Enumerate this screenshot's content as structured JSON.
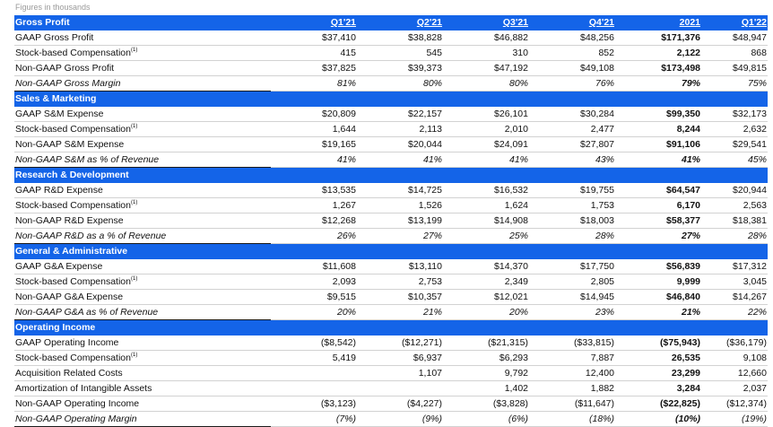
{
  "note": "Figures in thousands",
  "columns": [
    "Q1'21",
    "Q2'21",
    "Q3'21",
    "Q4'21",
    "2021",
    "Q1'22"
  ],
  "sup": "(1)",
  "sections": [
    {
      "title": "Gross Profit",
      "rows": [
        {
          "label": "GAAP Gross Profit",
          "values": [
            "$37,410",
            "$38,828",
            "$46,882",
            "$48,256",
            "$171,376",
            "$48,947"
          ]
        },
        {
          "label": "Stock-based Compensation",
          "values": [
            "415",
            "545",
            "310",
            "852",
            "2,122",
            "868"
          ]
        },
        {
          "label": "Non-GAAP Gross Profit",
          "values": [
            "$37,825",
            "$39,373",
            "$47,192",
            "$49,108",
            "$173,498",
            "$49,815"
          ]
        },
        {
          "label": "Non-GAAP Gross Margin",
          "values": [
            "81%",
            "80%",
            "80%",
            "76%",
            "79%",
            "75%"
          ]
        }
      ]
    },
    {
      "title": "Sales & Marketing",
      "rows": [
        {
          "label": "GAAP S&M Expense",
          "values": [
            "$20,809",
            "$22,157",
            "$26,101",
            "$30,284",
            "$99,350",
            "$32,173"
          ]
        },
        {
          "label": "Stock-based Compensation",
          "values": [
            "1,644",
            "2,113",
            "2,010",
            "2,477",
            "8,244",
            "2,632"
          ]
        },
        {
          "label": "Non-GAAP S&M Expense",
          "values": [
            "$19,165",
            "$20,044",
            "$24,091",
            "$27,807",
            "$91,106",
            "$29,541"
          ]
        },
        {
          "label": "Non-GAAP S&M as % of Revenue",
          "values": [
            "41%",
            "41%",
            "41%",
            "43%",
            "41%",
            "45%"
          ]
        }
      ]
    },
    {
      "title": "Research & Development",
      "rows": [
        {
          "label": "GAAP R&D Expense",
          "values": [
            "$13,535",
            "$14,725",
            "$16,532",
            "$19,755",
            "$64,547",
            "$20,944"
          ]
        },
        {
          "label": "Stock-based Compensation",
          "values": [
            "1,267",
            "1,526",
            "1,624",
            "1,753",
            "6,170",
            "2,563"
          ]
        },
        {
          "label": "Non-GAAP R&D Expense",
          "values": [
            "$12,268",
            "$13,199",
            "$14,908",
            "$18,003",
            "$58,377",
            "$18,381"
          ]
        },
        {
          "label": "Non-GAAP R&D as a % of Revenue",
          "values": [
            "26%",
            "27%",
            "25%",
            "28%",
            "27%",
            "28%"
          ]
        }
      ]
    },
    {
      "title": "General & Administrative",
      "rows": [
        {
          "label": "GAAP G&A Expense",
          "values": [
            "$11,608",
            "$13,110",
            "$14,370",
            "$17,750",
            "$56,839",
            "$17,312"
          ]
        },
        {
          "label": "Stock-based Compensation",
          "values": [
            "2,093",
            "2,753",
            "2,349",
            "2,805",
            "9,999",
            "3,045"
          ]
        },
        {
          "label": "Non-GAAP G&A Expense",
          "values": [
            "$9,515",
            "$10,357",
            "$12,021",
            "$14,945",
            "$46,840",
            "$14,267"
          ]
        },
        {
          "label": "Non-GAAP G&A as % of Revenue",
          "values": [
            "20%",
            "21%",
            "20%",
            "23%",
            "21%",
            "22%"
          ]
        }
      ]
    },
    {
      "title": "Operating Income",
      "rows": [
        {
          "label": "GAAP Operating Income",
          "values": [
            "($8,542)",
            "($12,271)",
            "($21,315)",
            "($33,815)",
            "($75,943)",
            "($36,179)"
          ]
        },
        {
          "label": "Stock-based Compensation",
          "values": [
            "5,419",
            "$6,937",
            "$6,293",
            "7,887",
            "26,535",
            "9,108"
          ]
        },
        {
          "label": "Acquisition Related  Costs",
          "values": [
            "",
            "1,107",
            "9,792",
            "12,400",
            "23,299",
            "12,660"
          ]
        },
        {
          "label": "Amortization of Intangible Assets",
          "values": [
            "",
            "",
            "1,402",
            "1,882",
            "3,284",
            "2,037"
          ]
        },
        {
          "label": "Non-GAAP Operating Income",
          "values": [
            "($3,123)",
            "($4,227)",
            "($3,828)",
            "($11,647)",
            "($22,825)",
            "($12,374)"
          ]
        },
        {
          "label": "Non-GAAP Operating Margin",
          "values": [
            "(7%)",
            "(9%)",
            "(6%)",
            "(18%)",
            "(10%)",
            "(19%)"
          ]
        }
      ]
    }
  ],
  "colors": {
    "section_header_bg": "#1464e8",
    "section_header_text": "#ffffff"
  }
}
